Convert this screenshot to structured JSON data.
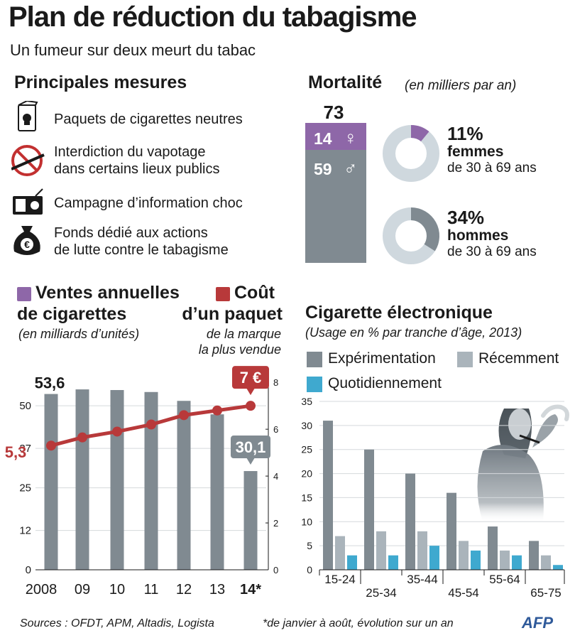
{
  "header": {
    "title": "Plan de réduction du tabagisme",
    "subtitle": "Un fumeur sur deux meurt du tabac"
  },
  "measures": {
    "heading": "Principales mesures",
    "items": [
      {
        "icon": "cigarette-pack-icon",
        "lines": [
          "Paquets de cigarettes neutres"
        ]
      },
      {
        "icon": "no-vaping-icon",
        "lines": [
          "Interdiction du vapotage",
          "dans certains lieux publics"
        ]
      },
      {
        "icon": "radio-icon",
        "lines": [
          "Campagne d’information choc"
        ]
      },
      {
        "icon": "money-bag-icon",
        "lines": [
          "Fonds dédié aux actions",
          "de lutte contre le tabagisme"
        ]
      }
    ]
  },
  "mortality": {
    "heading": "Mortalité",
    "unit": "(en milliers par an)",
    "total": "73",
    "women": "14",
    "men": "59",
    "women_symbol": "♀",
    "men_symbol": "♂",
    "colors": {
      "women": "#8e67a8",
      "men": "#808a91",
      "donut_bg": "#cfd8de"
    },
    "donuts": [
      {
        "pct": "11%",
        "value": 11,
        "label": "femmes",
        "sub": "de 30 à 69 ans",
        "color": "#8e67a8"
      },
      {
        "pct": "34%",
        "value": 34,
        "label": "hommes",
        "sub": "de 30 à 69 ans",
        "color": "#808a91"
      }
    ]
  },
  "sales_chart": {
    "legend_sales_1": "Ventes annuelles",
    "legend_sales_2": "de cigarettes",
    "legend_sales_unit": "(en milliards d’unités)",
    "legend_price_1": "Coût",
    "legend_price_2": "d’un paquet",
    "legend_price_3": "de la marque",
    "legend_price_4": "la plus vendue",
    "bar_label_first": "53,6",
    "bar_label_last": "30,1",
    "price_label_first": "5,3",
    "price_label_last": "7 €",
    "colors": {
      "bars": "#808a91",
      "line": "#b8393a",
      "legend_sales": "#8e67a8",
      "legend_price": "#b8393a"
    }
  },
  "ecig_chart": {
    "heading": "Cigarette électronique",
    "subheading": "(Usage en % par tranche d’âge, 2013)",
    "legend": [
      "Expérimentation",
      "Récemment",
      "Quotidiennement"
    ],
    "colors": [
      "#808a91",
      "#aab4bb",
      "#3fa9cf"
    ]
  },
  "chart_data": [
    {
      "type": "bar",
      "title": "Ventes annuelles de cigarettes",
      "ylabel": "(en milliards d’unités)",
      "categories": [
        "2008",
        "09",
        "10",
        "11",
        "12",
        "13",
        "14*"
      ],
      "series": [
        {
          "name": "Ventes annuelles de cigarettes",
          "axis": "left",
          "values": [
            53.6,
            55.0,
            54.8,
            54.2,
            51.5,
            47.4,
            30.1
          ]
        },
        {
          "name": "Coût d’un paquet",
          "axis": "right",
          "type": "line",
          "values": [
            5.3,
            5.65,
            5.9,
            6.2,
            6.6,
            6.8,
            7.0
          ]
        }
      ],
      "yticks_left": [
        "0",
        "12",
        "25",
        "37",
        "50"
      ],
      "ylim_left": [
        0,
        60
      ],
      "yticks_right": [
        "0",
        "2",
        "4",
        "6",
        "8"
      ],
      "ylim_right": [
        0,
        8.4
      ]
    },
    {
      "type": "bar",
      "title": "Cigarette électronique",
      "subtitle": "(Usage en % par tranche d’âge, 2013)",
      "categories": [
        "15-24",
        "25-34",
        "35-44",
        "45-54",
        "55-64",
        "65-75"
      ],
      "series": [
        {
          "name": "Expérimentation",
          "values": [
            31,
            25,
            20,
            16,
            9,
            6
          ]
        },
        {
          "name": "Récemment",
          "values": [
            7,
            8,
            8,
            6,
            4,
            3
          ]
        },
        {
          "name": "Quotidiennement",
          "values": [
            3,
            3,
            5,
            4,
            3,
            1
          ]
        }
      ],
      "yticks": [
        "0",
        "5",
        "10",
        "15",
        "20",
        "25",
        "30",
        "35"
      ],
      "ylim": [
        0,
        35
      ]
    }
  ],
  "footer": {
    "sources": "Sources : OFDT, APM, Altadis, Logista",
    "note": "*de janvier à août, évolution sur un an",
    "logo": "AFP"
  }
}
